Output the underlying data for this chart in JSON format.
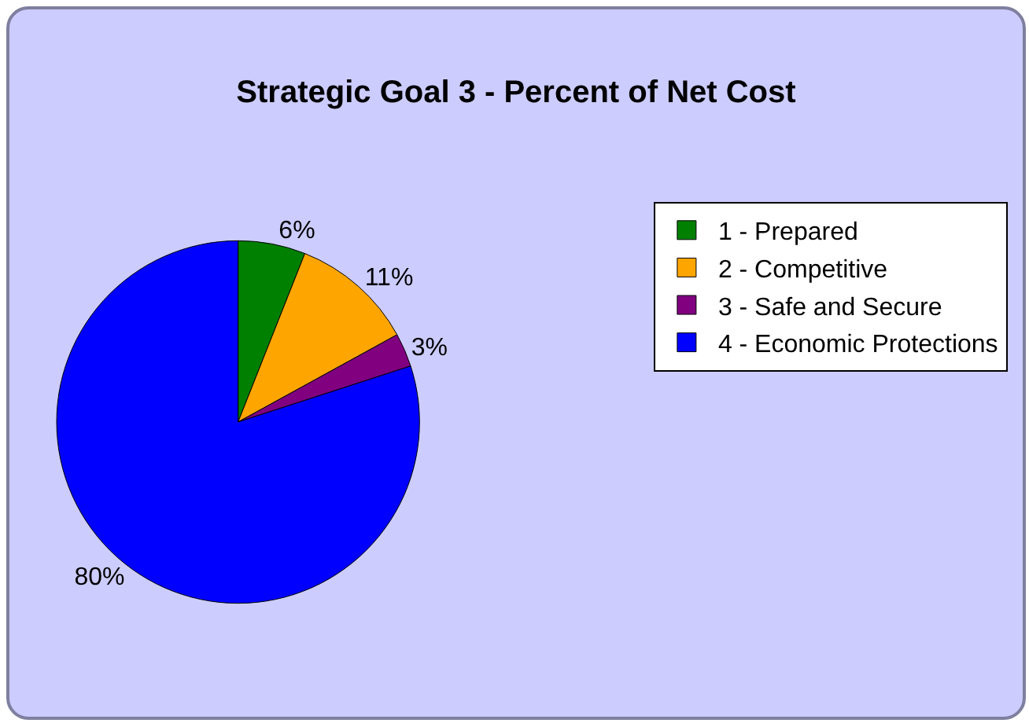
{
  "chart_data": {
    "type": "pie",
    "title": "Strategic Goal 3 - Percent of Net Cost",
    "categories": [
      "1 - Prepared",
      "2 - Competitive",
      "3 - Safe and Secure",
      "4 - Economic Protections"
    ],
    "values": [
      6,
      11,
      3,
      80
    ],
    "colors": [
      "#008000",
      "#ffa500",
      "#800080",
      "#0000ff"
    ],
    "value_labels": [
      "6%",
      "11%",
      "3%",
      "80%"
    ],
    "legend": "right"
  }
}
